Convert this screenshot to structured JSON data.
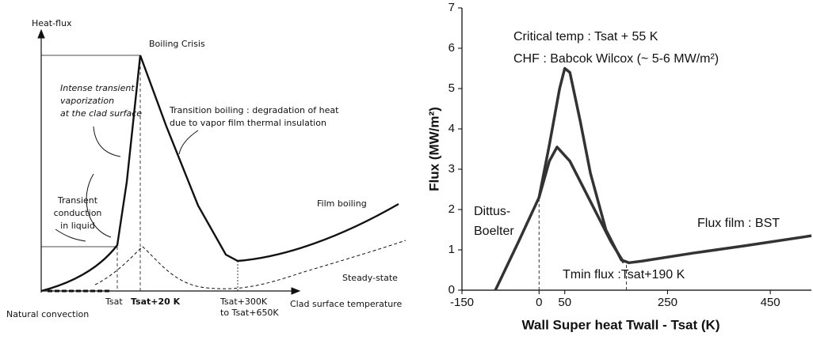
{
  "diagram": {
    "y_axis_label": "Heat-flux",
    "x_axis_label": "Clad surface temperature",
    "crisis_label": "Boiling Crisis",
    "vaporization_label": [
      "Intense transient",
      "vaporization",
      "at the clad surface"
    ],
    "transition_label": [
      "Transition boiling : degradation of heat",
      "due to vapor film thermal insulation"
    ],
    "conduction_label": [
      "Transient",
      "conduction",
      "in liquid"
    ],
    "film_label": "Film boiling",
    "steady_label": "Steady-state",
    "natural_label": "Natural convection",
    "x_marks": [
      "Tsat",
      "Tsat+20 K",
      "Tsat+300K",
      "to Tsat+650K"
    ]
  },
  "chart_data": {
    "type": "line",
    "xlabel": "Wall Super heat Twall - Tsat (K)",
    "ylabel": "Flux (MW/m²)",
    "xlim": [
      -150,
      530
    ],
    "xticks": [
      -150,
      0,
      50,
      250,
      450
    ],
    "ylim": [
      0,
      7
    ],
    "yticks": [
      0,
      1,
      2,
      3,
      4,
      5,
      6,
      7
    ],
    "series": [
      {
        "color": "#333333",
        "x": [
          -85,
          -40,
          0,
          20,
          40,
          50,
          60,
          80,
          100,
          130,
          160,
          175,
          200,
          300,
          400,
          530
        ],
        "values": [
          0,
          1.2,
          2.3,
          3.6,
          5.0,
          5.5,
          5.4,
          4.2,
          2.9,
          1.5,
          0.75,
          0.68,
          0.72,
          0.92,
          1.1,
          1.35
        ]
      },
      {
        "color": "#333333",
        "x": [
          0,
          20,
          35,
          60,
          100,
          140,
          165
        ],
        "values": [
          2.3,
          3.2,
          3.55,
          3.2,
          2.2,
          1.2,
          0.68
        ]
      }
    ],
    "reference_lines": [
      {
        "x": 0,
        "y": 2.3
      },
      {
        "x": 170,
        "y": 0.7
      }
    ],
    "annotations": [
      "Critical temp : Tsat + 55 K",
      "CHF  : Babcok Wilcox (~ 5-6 MW/m²)",
      "Dittus-",
      "Boelter",
      "Flux film : BST",
      "Tmin flux :Tsat+190 K"
    ]
  }
}
